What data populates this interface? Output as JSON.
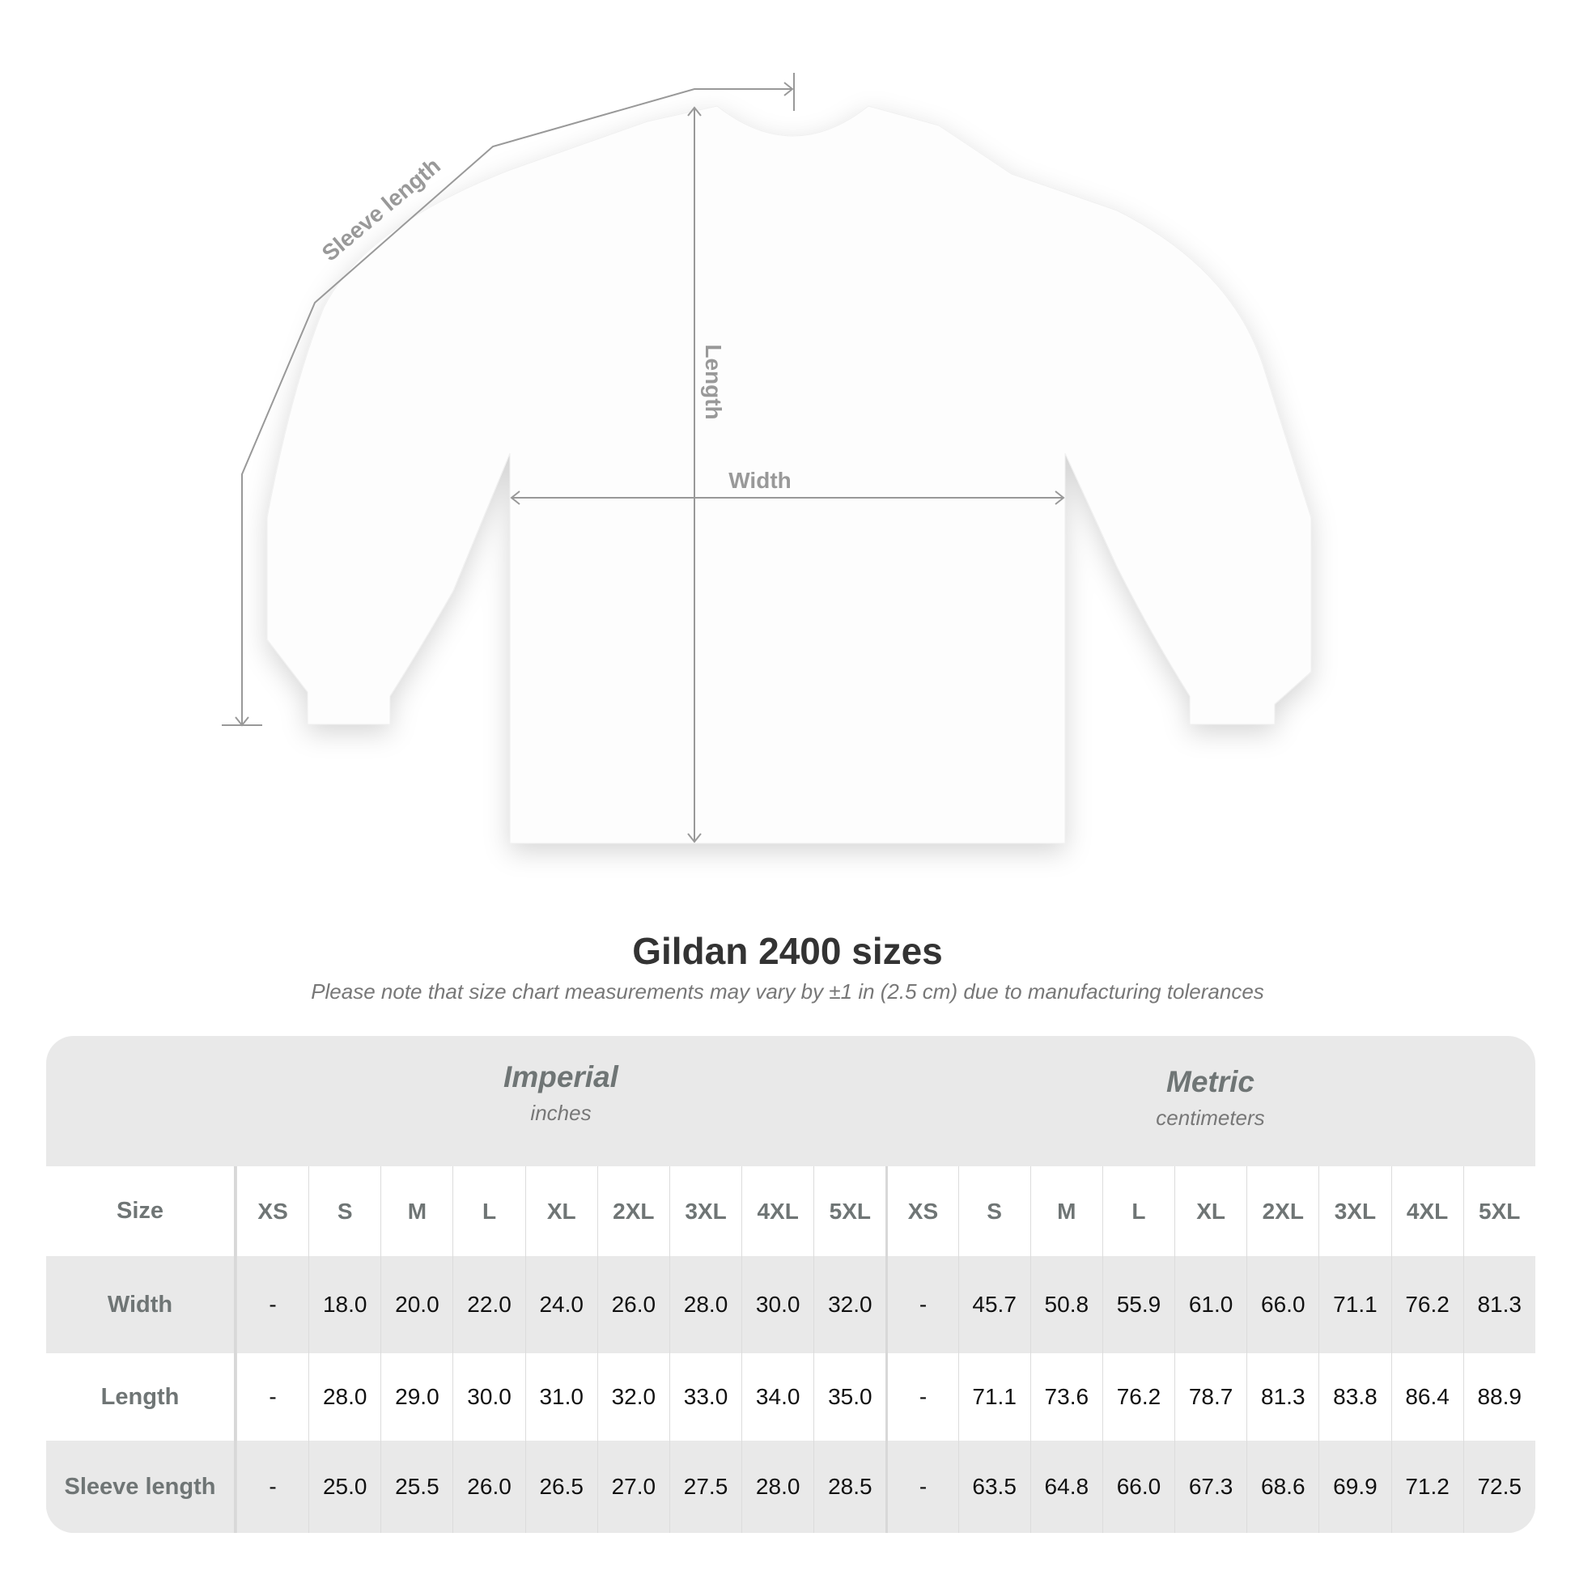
{
  "diagram": {
    "labels": {
      "sleeve": "Sleeve length",
      "length": "Length",
      "width": "Width"
    },
    "line_color": "#999999"
  },
  "title": "Gildan 2400 sizes",
  "subtitle": "Please note that size chart measurements may vary by ±1 in (2.5 cm) due to manufacturing tolerances",
  "table": {
    "imperial": {
      "name": "Imperial",
      "unit": "inches"
    },
    "metric": {
      "name": "Metric",
      "unit": "centimeters"
    },
    "size_label": "Size",
    "sizes": [
      "XS",
      "S",
      "M",
      "L",
      "XL",
      "2XL",
      "3XL",
      "4XL",
      "5XL"
    ],
    "rows": [
      {
        "label": "Width",
        "imperial": [
          "-",
          "18.0",
          "20.0",
          "22.0",
          "24.0",
          "26.0",
          "28.0",
          "30.0",
          "32.0"
        ],
        "metric": [
          "-",
          "45.7",
          "50.8",
          "55.9",
          "61.0",
          "66.0",
          "71.1",
          "76.2",
          "81.3"
        ]
      },
      {
        "label": "Length",
        "imperial": [
          "-",
          "28.0",
          "29.0",
          "30.0",
          "31.0",
          "32.0",
          "33.0",
          "34.0",
          "35.0"
        ],
        "metric": [
          "-",
          "71.1",
          "73.6",
          "76.2",
          "78.7",
          "81.3",
          "83.8",
          "86.4",
          "88.9"
        ]
      },
      {
        "label": "Sleeve length",
        "imperial": [
          "-",
          "25.0",
          "25.5",
          "26.0",
          "26.5",
          "27.0",
          "27.5",
          "28.0",
          "28.5"
        ],
        "metric": [
          "-",
          "63.5",
          "64.8",
          "66.0",
          "67.3",
          "68.6",
          "69.9",
          "71.2",
          "72.5"
        ]
      }
    ]
  }
}
